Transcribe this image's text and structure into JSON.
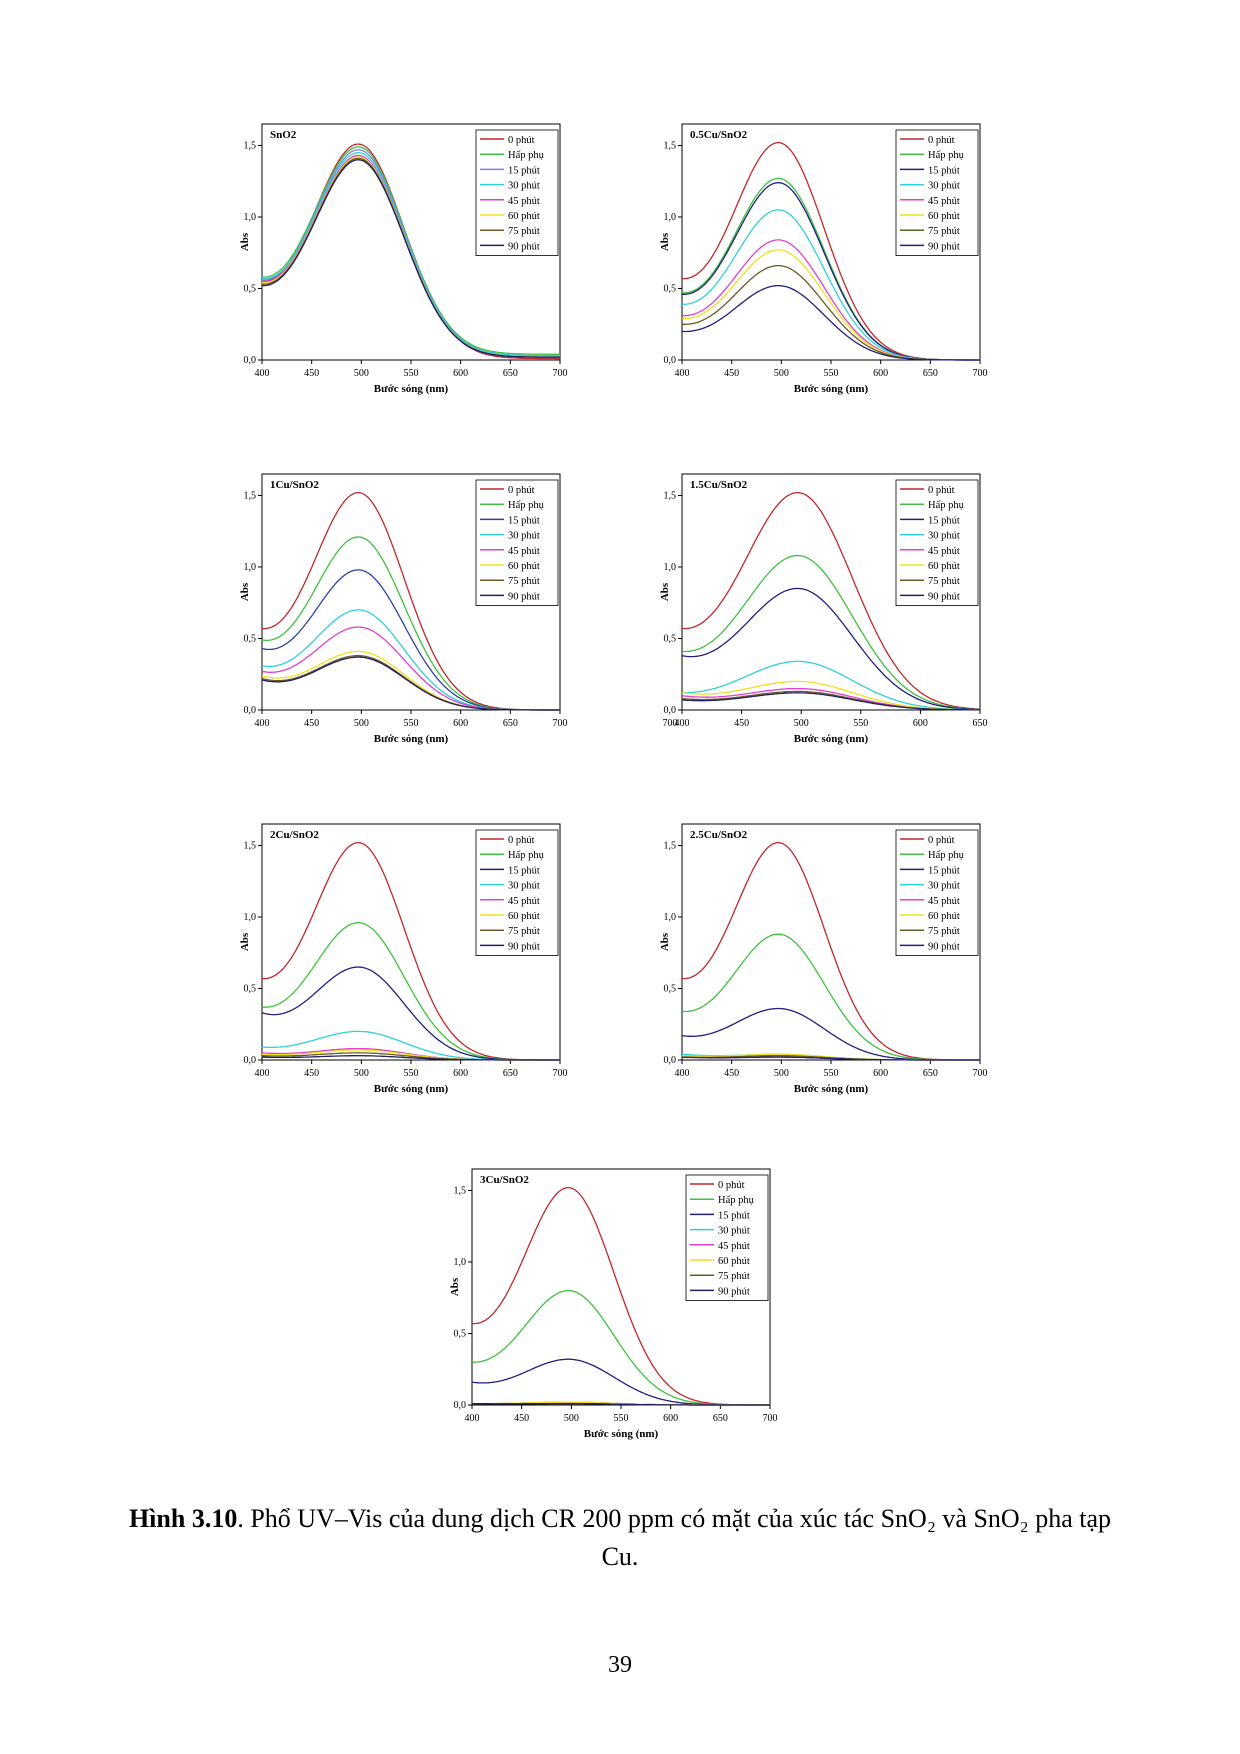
{
  "chart_data": [
    {
      "id": "snO2",
      "type": "line",
      "title": "SnO2",
      "xlabel": "Bước sóng (nm)",
      "ylabel": "Abs",
      "xlim": [
        400,
        700
      ],
      "ylim": [
        0,
        1.65
      ],
      "x_ticks": [
        "400",
        "450",
        "500",
        "550",
        "600",
        "650",
        "700"
      ],
      "y_ticks": [
        "0,0",
        "0,5",
        "1,0",
        "1,5"
      ],
      "legend": "top-right",
      "series": [
        {
          "name": "0 phút",
          "color": "#c0282d",
          "peak": 1.51,
          "start": 0.55,
          "tail": 0.01
        },
        {
          "name": "Hấp phụ",
          "color": "#40c040",
          "peak": 1.49,
          "start": 0.58,
          "tail": 0.04
        },
        {
          "name": "15 phút",
          "color": "#8080f0",
          "peak": 1.47,
          "start": 0.56,
          "tail": 0.03
        },
        {
          "name": "30 phút",
          "color": "#30d0d8",
          "peak": 1.45,
          "start": 0.57,
          "tail": 0.03
        },
        {
          "name": "45 phút",
          "color": "#e040d0",
          "peak": 1.43,
          "start": 0.55,
          "tail": 0.02
        },
        {
          "name": "60 phút",
          "color": "#f0e020",
          "peak": 1.42,
          "start": 0.54,
          "tail": 0.02
        },
        {
          "name": "75 phút",
          "color": "#6b5a2a",
          "peak": 1.41,
          "start": 0.53,
          "tail": 0.02
        },
        {
          "name": "90 phút",
          "color": "#202060",
          "peak": 1.4,
          "start": 0.52,
          "tail": 0.02
        }
      ]
    },
    {
      "id": "cu05",
      "type": "line",
      "title": "0.5Cu/SnO2",
      "xlabel": "Bước sóng (nm)",
      "ylabel": "Abs",
      "xlim": [
        400,
        700
      ],
      "ylim": [
        0,
        1.65
      ],
      "x_ticks": [
        "400",
        "450",
        "500",
        "550",
        "600",
        "650",
        "700"
      ],
      "y_ticks": [
        "0,0",
        "0,5",
        "1,0",
        "1,5"
      ],
      "legend": "top-right",
      "series": [
        {
          "name": "0 phút",
          "color": "#c0282d",
          "peak": 1.52,
          "start": 0.57,
          "tail": 0.0
        },
        {
          "name": "Hấp phụ",
          "color": "#40c040",
          "peak": 1.27,
          "start": 0.47,
          "tail": 0.0
        },
        {
          "name": "15 phút",
          "color": "#202080",
          "peak": 1.24,
          "start": 0.46,
          "tail": 0.0
        },
        {
          "name": "30 phút",
          "color": "#30d0d8",
          "peak": 1.05,
          "start": 0.39,
          "tail": 0.0
        },
        {
          "name": "45 phút",
          "color": "#e040d0",
          "peak": 0.84,
          "start": 0.31,
          "tail": 0.0
        },
        {
          "name": "60 phút",
          "color": "#f0e020",
          "peak": 0.77,
          "start": 0.29,
          "tail": 0.0
        },
        {
          "name": "75 phút",
          "color": "#6b5a2a",
          "peak": 0.66,
          "start": 0.25,
          "tail": 0.0
        },
        {
          "name": "90 phút",
          "color": "#202080",
          "peak": 0.52,
          "start": 0.2,
          "tail": 0.0
        }
      ]
    },
    {
      "id": "cu1",
      "type": "line",
      "title": "1Cu/SnO2",
      "xlabel": "Bước sóng (nm)",
      "ylabel": "Abs",
      "xlim": [
        400,
        700
      ],
      "ylim": [
        0,
        1.65
      ],
      "x_ticks": [
        "400",
        "450",
        "500",
        "550",
        "600",
        "650",
        "700"
      ],
      "y_ticks": [
        "0,0",
        "0,5",
        "1,0",
        "1,5"
      ],
      "legend": "top-right",
      "series": [
        {
          "name": "0 phút",
          "color": "#c0282d",
          "peak": 1.52,
          "start": 0.57,
          "tail": 0.0
        },
        {
          "name": "Hấp phụ",
          "color": "#40c040",
          "peak": 1.21,
          "start": 0.49,
          "tail": 0.0
        },
        {
          "name": "15 phút",
          "color": "#3040a0",
          "peak": 0.98,
          "start": 0.43,
          "tail": 0.0
        },
        {
          "name": "30 phút",
          "color": "#30d0d8",
          "peak": 0.7,
          "start": 0.31,
          "tail": 0.0
        },
        {
          "name": "45 phút",
          "color": "#e040d0",
          "peak": 0.58,
          "start": 0.27,
          "tail": 0.0
        },
        {
          "name": "60 phút",
          "color": "#f0e020",
          "peak": 0.41,
          "start": 0.24,
          "tail": 0.0
        },
        {
          "name": "75 phút",
          "color": "#6b5a2a",
          "peak": 0.38,
          "start": 0.22,
          "tail": 0.0
        },
        {
          "name": "90 phút",
          "color": "#202060",
          "peak": 0.37,
          "start": 0.21,
          "tail": 0.0
        }
      ]
    },
    {
      "id": "cu15",
      "type": "line",
      "title": "1.5Cu/SnO2",
      "xlabel": "Bước sóng (nm)",
      "ylabel": "Abs",
      "xlim": [
        400,
        650
      ],
      "ylim": [
        0,
        1.65
      ],
      "x_ticks": [
        "400",
        "450",
        "500",
        "550",
        "600",
        "650"
      ],
      "y_ticks": [
        "0,0",
        "0,5",
        "1,0",
        "1,5"
      ],
      "extra_x_label": "700",
      "legend": "top-right",
      "series": [
        {
          "name": "0 phút",
          "color": "#c0282d",
          "peak": 1.52,
          "start": 0.57,
          "tail": 0.0
        },
        {
          "name": "Hấp phụ",
          "color": "#40c040",
          "peak": 1.08,
          "start": 0.41,
          "tail": 0.0
        },
        {
          "name": "15 phút",
          "color": "#202080",
          "peak": 0.85,
          "start": 0.38,
          "tail": 0.0
        },
        {
          "name": "30 phút",
          "color": "#30d0d8",
          "peak": 0.34,
          "start": 0.12,
          "tail": 0.0
        },
        {
          "name": "45 phút",
          "color": "#e040d0",
          "peak": 0.15,
          "start": 0.1,
          "tail": 0.0
        },
        {
          "name": "60 phút",
          "color": "#f0e020",
          "peak": 0.2,
          "start": 0.12,
          "tail": 0.0
        },
        {
          "name": "75 phút",
          "color": "#6b5a2a",
          "peak": 0.13,
          "start": 0.08,
          "tail": 0.0
        },
        {
          "name": "90 phút",
          "color": "#202060",
          "peak": 0.12,
          "start": 0.07,
          "tail": 0.0
        }
      ]
    },
    {
      "id": "cu2",
      "type": "line",
      "title": "2Cu/SnO2",
      "xlabel": "Bước sóng (nm)",
      "ylabel": "Abs",
      "xlim": [
        400,
        700
      ],
      "ylim": [
        0,
        1.65
      ],
      "x_ticks": [
        "400",
        "450",
        "500",
        "550",
        "600",
        "650",
        "700"
      ],
      "y_ticks": [
        "0,0",
        "0,5",
        "1,0",
        "1,5"
      ],
      "legend": "top-right",
      "series": [
        {
          "name": "0 phút",
          "color": "#c0282d",
          "peak": 1.52,
          "start": 0.57,
          "tail": 0.0
        },
        {
          "name": "Hấp phụ",
          "color": "#40c040",
          "peak": 0.96,
          "start": 0.37,
          "tail": 0.0
        },
        {
          "name": "15 phút",
          "color": "#202080",
          "peak": 0.65,
          "start": 0.33,
          "tail": 0.0
        },
        {
          "name": "30 phút",
          "color": "#30d0d8",
          "peak": 0.2,
          "start": 0.09,
          "tail": 0.0
        },
        {
          "name": "45 phút",
          "color": "#e040d0",
          "peak": 0.08,
          "start": 0.05,
          "tail": 0.0
        },
        {
          "name": "60 phút",
          "color": "#f0e020",
          "peak": 0.07,
          "start": 0.04,
          "tail": 0.0
        },
        {
          "name": "75 phút",
          "color": "#6b5a2a",
          "peak": 0.05,
          "start": 0.03,
          "tail": 0.0
        },
        {
          "name": "90 phút",
          "color": "#202060",
          "peak": 0.03,
          "start": 0.02,
          "tail": 0.0
        }
      ]
    },
    {
      "id": "cu25",
      "type": "line",
      "title": "2.5Cu/SnO2",
      "xlabel": "Bước sóng (nm)",
      "ylabel": "Abs",
      "xlim": [
        400,
        700
      ],
      "ylim": [
        0,
        1.65
      ],
      "x_ticks": [
        "400",
        "450",
        "500",
        "550",
        "600",
        "650",
        "700"
      ],
      "y_ticks": [
        "0,0",
        "0,5",
        "1,0",
        "1,5"
      ],
      "legend": "top-right",
      "series": [
        {
          "name": "0 phút",
          "color": "#c0282d",
          "peak": 1.52,
          "start": 0.57,
          "tail": 0.0
        },
        {
          "name": "Hấp phụ",
          "color": "#40c040",
          "peak": 0.88,
          "start": 0.34,
          "tail": 0.0
        },
        {
          "name": "15 phút",
          "color": "#202080",
          "peak": 0.36,
          "start": 0.17,
          "tail": 0.0
        },
        {
          "name": "30 phút",
          "color": "#30d0d8",
          "peak": 0.04,
          "start": 0.04,
          "tail": 0.0
        },
        {
          "name": "45 phút",
          "color": "#e040d0",
          "peak": 0.03,
          "start": 0.03,
          "tail": 0.0
        },
        {
          "name": "60 phút",
          "color": "#f0e020",
          "peak": 0.04,
          "start": 0.03,
          "tail": 0.0
        },
        {
          "name": "75 phút",
          "color": "#6b5a2a",
          "peak": 0.03,
          "start": 0.02,
          "tail": 0.0
        },
        {
          "name": "90 phút",
          "color": "#202080",
          "peak": 0.02,
          "start": 0.02,
          "tail": 0.0
        }
      ]
    },
    {
      "id": "cu3",
      "type": "line",
      "title": "3Cu/SnO2",
      "xlabel": "Bước sóng (nm)",
      "ylabel": "Abs",
      "xlim": [
        400,
        700
      ],
      "ylim": [
        0,
        1.65
      ],
      "x_ticks": [
        "400",
        "450",
        "500",
        "550",
        "600",
        "650",
        "700"
      ],
      "y_ticks": [
        "0,0",
        "0,5",
        "1,0",
        "1,5"
      ],
      "legend": "top-right",
      "series": [
        {
          "name": "0 phút",
          "color": "#c0282d",
          "peak": 1.52,
          "start": 0.57,
          "tail": 0.0
        },
        {
          "name": "Hấp phụ",
          "color": "#40c040",
          "peak": 0.8,
          "start": 0.3,
          "tail": 0.0
        },
        {
          "name": "15 phút",
          "color": "#202080",
          "peak": 0.32,
          "start": 0.16,
          "tail": 0.0
        },
        {
          "name": "30 phút",
          "color": "#30d0d8",
          "peak": 0.02,
          "start": 0.01,
          "tail": 0.0
        },
        {
          "name": "45 phút",
          "color": "#e040d0",
          "peak": 0.02,
          "start": 0.01,
          "tail": 0.0
        },
        {
          "name": "60 phút",
          "color": "#f0e020",
          "peak": 0.02,
          "start": 0.01,
          "tail": 0.0
        },
        {
          "name": "75 phút",
          "color": "#6b5a2a",
          "peak": 0.01,
          "start": 0.01,
          "tail": 0.0
        },
        {
          "name": "90 phút",
          "color": "#202060",
          "peak": 0.01,
          "start": 0.01,
          "tail": 0.0
        }
      ]
    }
  ],
  "caption": {
    "label": "Hình 3.10",
    "text": ". Phổ UV–Vis của dung dịch CR 200 ppm có mặt của xúc tác SnO₂ và SnO₂ pha tạp Cu."
  },
  "page_number": "39"
}
